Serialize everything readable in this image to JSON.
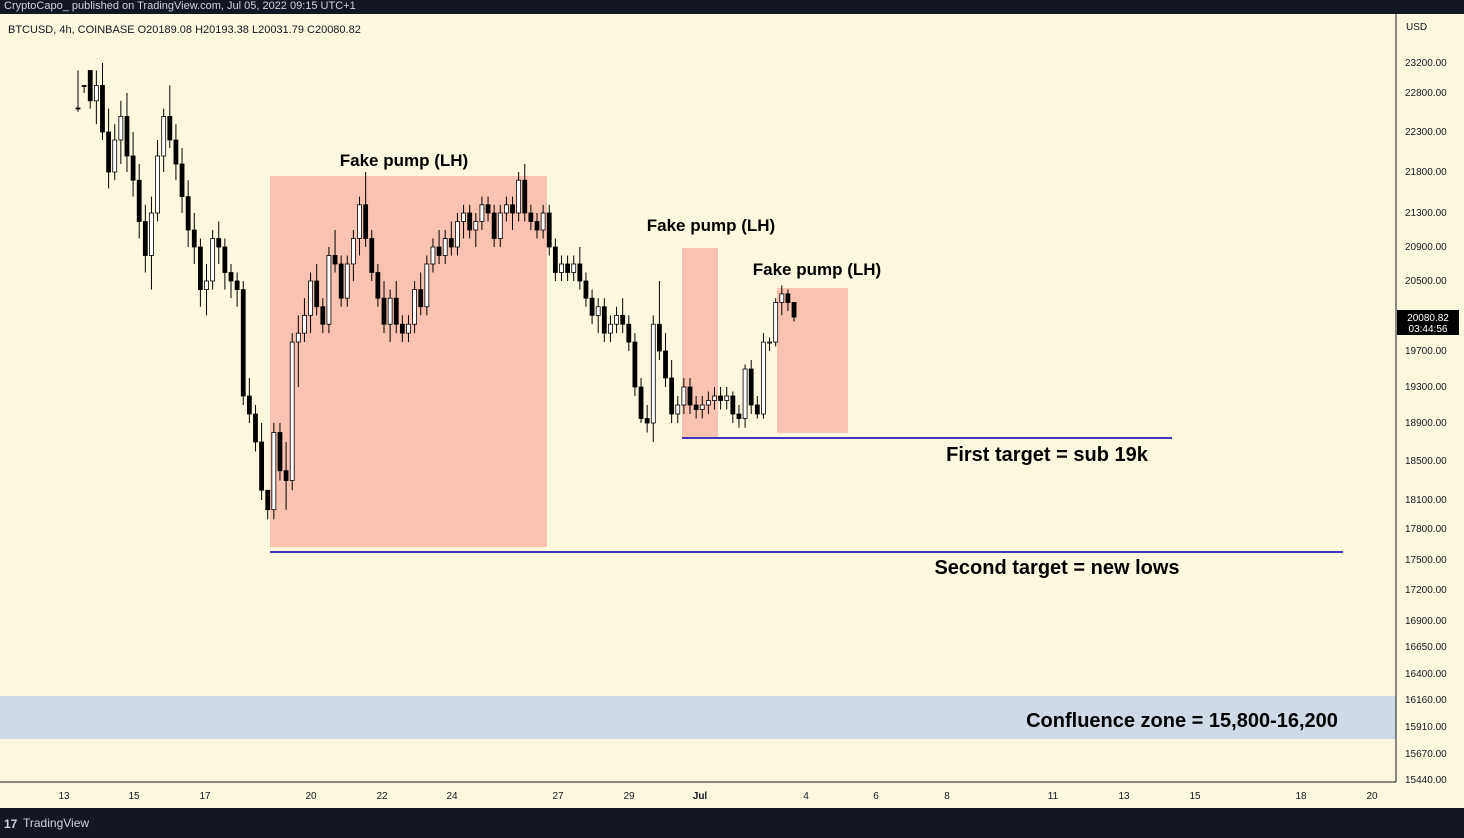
{
  "header": {
    "published_line": "CryptoCapo_ published on TradingView.com, Jul 05, 2022 09:15 UTC+1"
  },
  "symbol_info": {
    "symbol": "BTCUSD, 4h, COINBASE",
    "open": "O20189.08",
    "high": "H20193.38",
    "low": "L20031.79",
    "close": "C20080.82"
  },
  "footer": {
    "brand": "TradingView",
    "logo_icon": "tradingview-logo-icon"
  },
  "chart_data": {
    "type": "candlestick",
    "currency_label": "USD",
    "y_ticks": [
      "23200.00",
      "22800.00",
      "22300.00",
      "21800.00",
      "21300.00",
      "20900.00",
      "20500.00",
      "19700.00",
      "19300.00",
      "18900.00",
      "18500.00",
      "18100.00",
      "17800.00",
      "17500.00",
      "17200.00",
      "16900.00",
      "16650.00",
      "16400.00",
      "16160.00",
      "15910.00",
      "15670.00",
      "15440.00"
    ],
    "x_ticks": [
      "13",
      "15",
      "17",
      "20",
      "22",
      "24",
      "27",
      "29",
      "Jul",
      "4",
      "6",
      "8",
      "11",
      "13",
      "15",
      "18",
      "20"
    ],
    "last_price": "20080.82",
    "countdown": "03:44:56",
    "colors": {
      "background": "#fcf8e0",
      "up": "#ffffff",
      "down": "#000000",
      "zone": "#f9b8a8",
      "target_line": "#3f36b8",
      "confluence": "#cfdae6"
    },
    "ohlc": [
      [
        23800,
        23850,
        23300,
        23500
      ],
      [
        23500,
        23600,
        22900,
        23100
      ],
      [
        23100,
        23300,
        22600,
        22700
      ],
      [
        22700,
        23100,
        22400,
        22900
      ],
      [
        22900,
        23200,
        22200,
        22300
      ],
      [
        22300,
        22600,
        21600,
        21800
      ],
      [
        21800,
        22400,
        21700,
        22200
      ],
      [
        22200,
        22700,
        21900,
        22500
      ],
      [
        22500,
        22800,
        21800,
        22000
      ],
      [
        22000,
        22300,
        21500,
        21700
      ],
      [
        21700,
        21900,
        21000,
        21200
      ],
      [
        21200,
        21400,
        20600,
        20800
      ],
      [
        20800,
        21500,
        20400,
        21300
      ],
      [
        21300,
        22200,
        21200,
        22000
      ],
      [
        22000,
        22600,
        21800,
        22500
      ],
      [
        22500,
        22900,
        22100,
        22200
      ],
      [
        22200,
        22400,
        21700,
        21900
      ],
      [
        21900,
        22100,
        21300,
        21500
      ],
      [
        21500,
        21700,
        20900,
        21100
      ],
      [
        21100,
        21300,
        20700,
        20900
      ],
      [
        20900,
        21000,
        20200,
        20400
      ],
      [
        20400,
        20700,
        20100,
        20500
      ],
      [
        20500,
        21100,
        20400,
        21000
      ],
      [
        21000,
        21200,
        20700,
        20900
      ],
      [
        20900,
        21000,
        20400,
        20600
      ],
      [
        20600,
        20700,
        20300,
        20500
      ],
      [
        20500,
        20600,
        20200,
        20400
      ],
      [
        20400,
        20500,
        19100,
        19200
      ],
      [
        19200,
        19400,
        18900,
        19000
      ],
      [
        19000,
        19100,
        18600,
        18700
      ],
      [
        18700,
        18900,
        18100,
        18200
      ],
      [
        18200,
        18200,
        17900,
        18000
      ],
      [
        18000,
        18900,
        17900,
        18800
      ],
      [
        18800,
        18900,
        18300,
        18400
      ],
      [
        18400,
        18700,
        18000,
        18300
      ],
      [
        18300,
        19900,
        18200,
        19800
      ],
      [
        19800,
        20100,
        19300,
        19900
      ],
      [
        19900,
        20300,
        19800,
        20100
      ],
      [
        20100,
        20600,
        19900,
        20500
      ],
      [
        20500,
        20700,
        20100,
        20200
      ],
      [
        20200,
        20300,
        19900,
        20000
      ],
      [
        20000,
        20900,
        19900,
        20800
      ],
      [
        20800,
        21100,
        20600,
        20700
      ],
      [
        20700,
        20800,
        20200,
        20300
      ],
      [
        20300,
        20800,
        20200,
        20700
      ],
      [
        20700,
        21100,
        20500,
        21000
      ],
      [
        21000,
        21500,
        20800,
        21400
      ],
      [
        21400,
        21800,
        20900,
        21000
      ],
      [
        21000,
        21100,
        20500,
        20600
      ],
      [
        20600,
        20700,
        20200,
        20300
      ],
      [
        20300,
        20500,
        19900,
        20000
      ],
      [
        20000,
        20400,
        19800,
        20300
      ],
      [
        20300,
        20500,
        19900,
        20000
      ],
      [
        20000,
        20100,
        19800,
        19900
      ],
      [
        19900,
        20100,
        19800,
        20000
      ],
      [
        20000,
        20500,
        19900,
        20400
      ],
      [
        20400,
        20600,
        20100,
        20200
      ],
      [
        20200,
        20800,
        20100,
        20700
      ],
      [
        20700,
        21000,
        20600,
        20900
      ],
      [
        20900,
        21100,
        20700,
        20800
      ],
      [
        20800,
        21100,
        20700,
        21000
      ],
      [
        21000,
        21200,
        20800,
        20900
      ],
      [
        20900,
        21300,
        20800,
        21200
      ],
      [
        21200,
        21400,
        21000,
        21300
      ],
      [
        21300,
        21400,
        21000,
        21100
      ],
      [
        21100,
        21300,
        20900,
        21200
      ],
      [
        21200,
        21500,
        21100,
        21400
      ],
      [
        21400,
        21500,
        21200,
        21300
      ],
      [
        21300,
        21400,
        20900,
        21000
      ],
      [
        21000,
        21400,
        20900,
        21300
      ],
      [
        21300,
        21500,
        21200,
        21400
      ],
      [
        21400,
        21500,
        21100,
        21300
      ],
      [
        21300,
        21800,
        21200,
        21700
      ],
      [
        21700,
        21900,
        21200,
        21300
      ],
      [
        21300,
        21400,
        21100,
        21200
      ],
      [
        21200,
        21300,
        21000,
        21100
      ],
      [
        21100,
        21400,
        21000,
        21300
      ],
      [
        21300,
        21400,
        20800,
        20900
      ],
      [
        20900,
        21000,
        20500,
        20600
      ],
      [
        20600,
        20800,
        20500,
        20700
      ],
      [
        20700,
        20800,
        20500,
        20600
      ],
      [
        20600,
        20800,
        20500,
        20700
      ],
      [
        20700,
        20900,
        20400,
        20500
      ],
      [
        20500,
        20600,
        20200,
        20300
      ],
      [
        20300,
        20400,
        20000,
        20100
      ],
      [
        20100,
        20300,
        19900,
        20200
      ],
      [
        20200,
        20300,
        19800,
        19900
      ],
      [
        19900,
        20100,
        19800,
        20000
      ],
      [
        20000,
        20200,
        19900,
        20100
      ],
      [
        20100,
        20300,
        19900,
        20000
      ],
      [
        20000,
        20100,
        19700,
        19800
      ],
      [
        19800,
        19900,
        19200,
        19300
      ],
      [
        19300,
        19400,
        18900,
        18950
      ],
      [
        18950,
        19100,
        18800,
        18900
      ],
      [
        18900,
        20100,
        18700,
        20000
      ],
      [
        20000,
        20500,
        19600,
        19700
      ],
      [
        19700,
        19900,
        19300,
        19400
      ],
      [
        19400,
        19600,
        18900,
        19000
      ],
      [
        19000,
        19200,
        18900,
        19100
      ],
      [
        19100,
        19400,
        19000,
        19300
      ],
      [
        19300,
        19400,
        19000,
        19100
      ],
      [
        19100,
        19200,
        18950,
        19050
      ],
      [
        19050,
        19200,
        18950,
        19100
      ],
      [
        19100,
        19250,
        19000,
        19150
      ],
      [
        19150,
        19300,
        19050,
        19200
      ],
      [
        19200,
        19300,
        19050,
        19150
      ],
      [
        19150,
        19300,
        19050,
        19200
      ],
      [
        19200,
        19250,
        18900,
        19000
      ],
      [
        19000,
        19100,
        18850,
        18950
      ],
      [
        18950,
        19550,
        18850,
        19500
      ],
      [
        19500,
        19600,
        19000,
        19100
      ],
      [
        19100,
        19200,
        18950,
        19000
      ],
      [
        19000,
        19900,
        18950,
        19800
      ],
      [
        19800,
        19850,
        19700,
        19800
      ],
      [
        19800,
        20300,
        19750,
        20250
      ],
      [
        20250,
        20450,
        20100,
        20350
      ],
      [
        20350,
        20400,
        20150,
        20250
      ],
      [
        20250,
        20250,
        20030,
        20080
      ]
    ]
  },
  "annotations": {
    "zone1_label": "Fake pump (LH)",
    "zone2_label": "Fake pump (LH)",
    "zone3_label": "Fake pump (LH)",
    "first_target": "First target = sub 19k",
    "second_target": "Second target = new lows",
    "confluence_label": "Confluence zone = 15,800-16,200"
  }
}
